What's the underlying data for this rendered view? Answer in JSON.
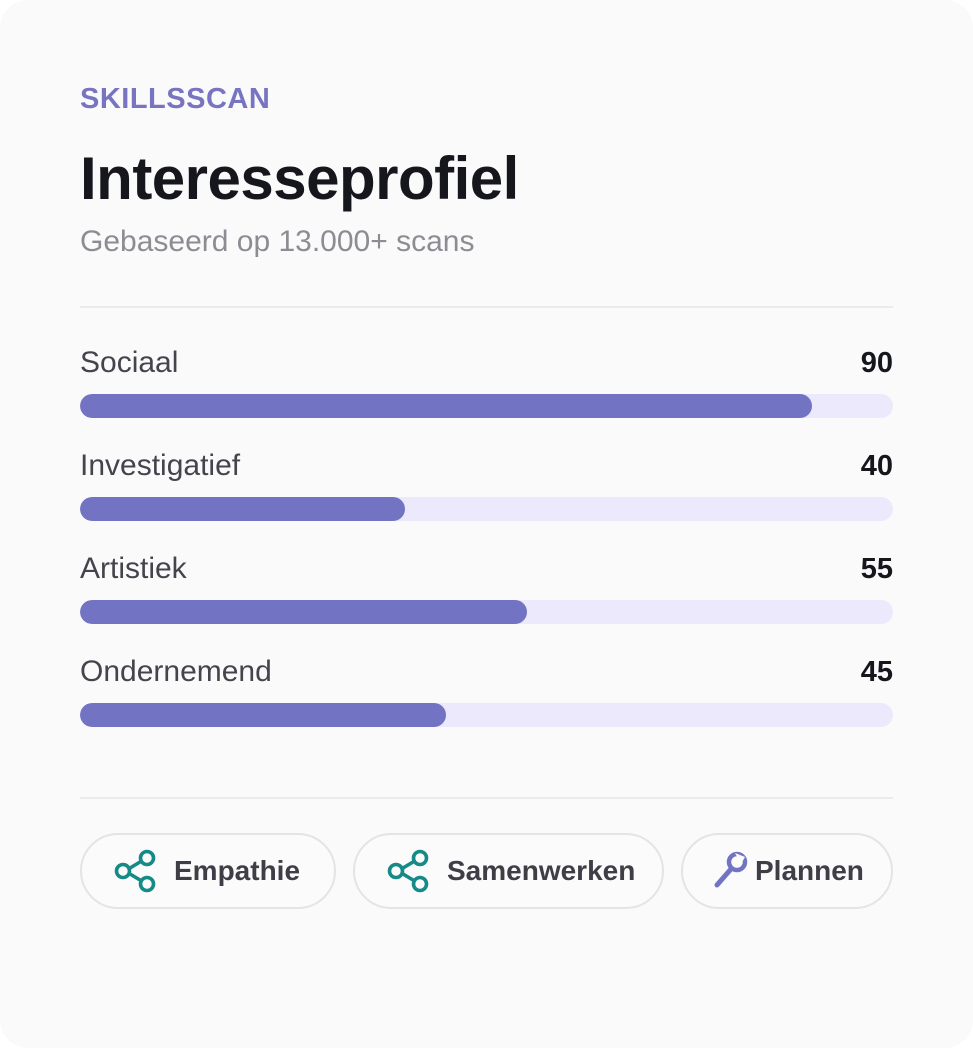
{
  "header": {
    "eyebrow": "SKILLSSCAN",
    "title": "Interesseprofiel",
    "subtitle": "Gebaseerd op 13.000+ scans"
  },
  "profile": {
    "max": 100,
    "items": [
      {
        "label": "Sociaal",
        "value": "90",
        "level": 90
      },
      {
        "label": "Investigatief",
        "value": "40",
        "level": 40
      },
      {
        "label": "Artistiek",
        "value": "55",
        "level": 55
      },
      {
        "label": "Ondernemend",
        "value": "45",
        "level": 45
      }
    ]
  },
  "skills": [
    {
      "label": "Empathie",
      "icon": "share-nodes-icon"
    },
    {
      "label": "Samenwerken",
      "icon": "share-nodes-icon"
    },
    {
      "label": "Plannen",
      "icon": "wrench-icon"
    }
  ],
  "colors": {
    "accent": "#7373c4",
    "track": "#ece9fc",
    "teal_icon": "#158a86",
    "title": "#16161d",
    "muted": "#8d8c93"
  }
}
